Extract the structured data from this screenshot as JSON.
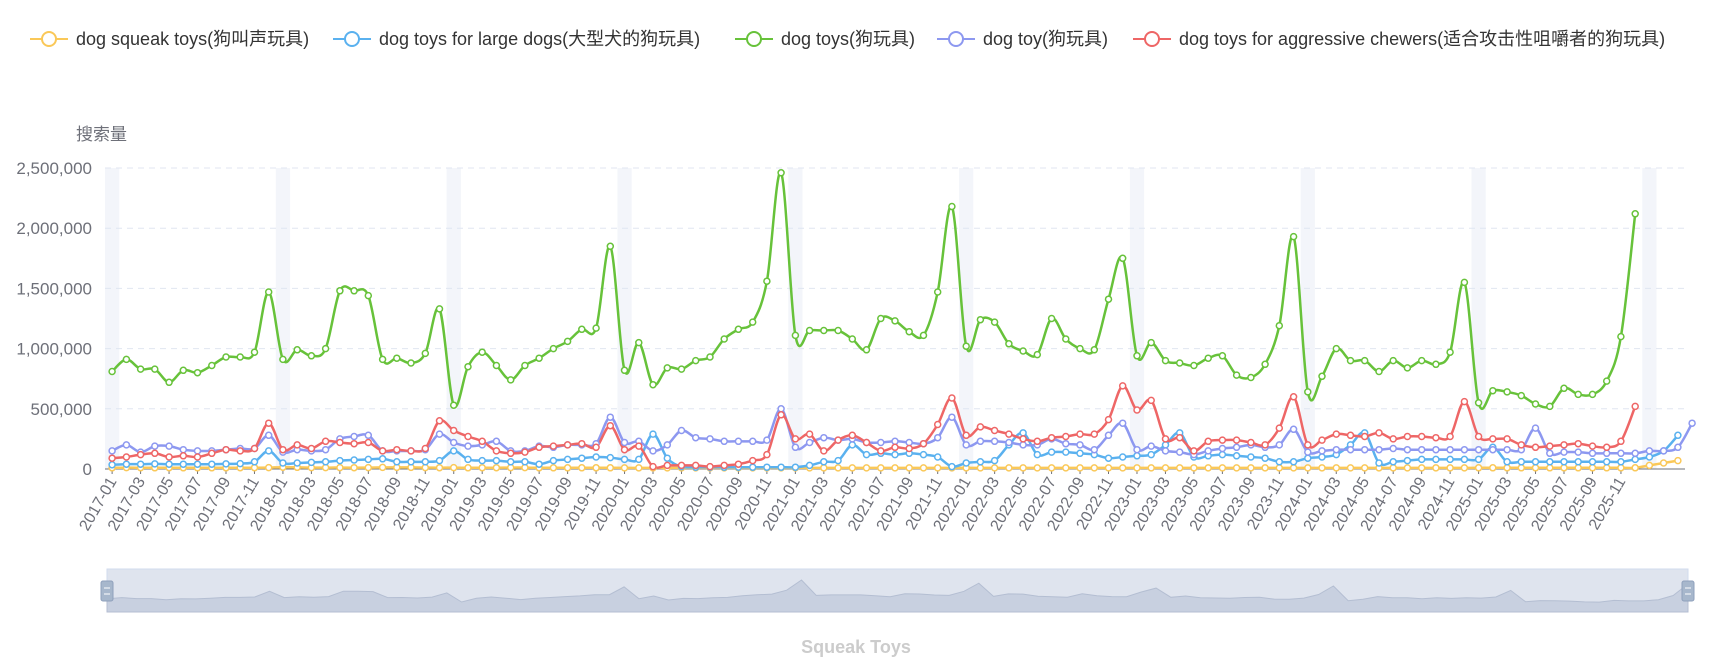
{
  "chart_data": {
    "type": "line",
    "title": "",
    "subtitle": "Squeak Toys",
    "ylabel": "搜索量",
    "xlabel": "",
    "ylim": [
      0,
      2500000
    ],
    "yticks": [
      "0",
      "500,000",
      "1,000,000",
      "1,500,000",
      "2,000,000",
      "2,500,000"
    ],
    "x_tick_labels": [
      "2017-01",
      "2017-03",
      "2017-05",
      "2017-07",
      "2017-09",
      "2017-11",
      "2018-01",
      "2018-03",
      "2018-05",
      "2018-07",
      "2018-09",
      "2018-11",
      "2019-01",
      "2019-03",
      "2019-05",
      "2019-07",
      "2019-09",
      "2019-11",
      "2020-01",
      "2020-03",
      "2020-05",
      "2020-07",
      "2020-09",
      "2020-11",
      "2021-01",
      "2021-03",
      "2021-05",
      "2021-07",
      "2021-09",
      "2021-11",
      "2022-01",
      "2022-03",
      "2022-05",
      "2022-07",
      "2022-09",
      "2022-11",
      "2023-01",
      "2023-03",
      "2023-05",
      "2023-07",
      "2023-09",
      "2023-11",
      "2024-01",
      "2024-03",
      "2024-05",
      "2024-07",
      "2024-09",
      "2024-11",
      "2025-01",
      "2025-03",
      "2025-05",
      "2025-07",
      "2025-09",
      "2025-11"
    ],
    "grid": true,
    "legend_position": "top",
    "datazoom": true,
    "series": [
      {
        "name": "dog squeak toys(狗叫声玩具)",
        "color": "#fac858",
        "values": [
          10000,
          12000,
          11000,
          10000,
          11000,
          10000,
          10000,
          10000,
          10000,
          11000,
          11000,
          12000,
          15000,
          14000,
          12000,
          12000,
          12000,
          11000,
          12000,
          13000,
          13000,
          13000,
          12000,
          11000,
          12000,
          10000,
          11000,
          11000,
          12000,
          12000,
          10000,
          10000,
          10000,
          10000,
          10000,
          10000,
          9000,
          9000,
          9000,
          9000,
          9000,
          9000,
          9000,
          9000,
          9000,
          9000,
          9000,
          9000,
          9000,
          9000,
          9000,
          9000,
          9000,
          9000,
          9000,
          9000,
          9000,
          9000,
          9000,
          9000,
          9000,
          9000,
          9000,
          9000,
          9000,
          9000,
          9000,
          9000,
          9000,
          9000,
          9000,
          9000,
          9000,
          9000,
          9000,
          9000,
          9000,
          9000,
          9000,
          9000,
          9000,
          9000,
          9000,
          9000,
          9000,
          9000,
          9000,
          9000,
          9000,
          9000,
          9000,
          9000,
          9000,
          9000,
          9000,
          9000,
          10000,
          10000,
          10000,
          10000,
          10000,
          10000,
          10000,
          10000,
          10000,
          10000,
          10000,
          10000,
          30000,
          50000,
          70000
        ]
      },
      {
        "name": "dog toys for large dogs(大型犬的狗玩具)",
        "color": "#5ab1ef",
        "values": [
          35000,
          40000,
          40000,
          42000,
          40000,
          40000,
          40000,
          40000,
          42000,
          45000,
          60000,
          150000,
          50000,
          50000,
          55000,
          60000,
          70000,
          75000,
          80000,
          85000,
          60000,
          60000,
          60000,
          70000,
          150000,
          80000,
          70000,
          70000,
          60000,
          60000,
          40000,
          70000,
          80000,
          90000,
          100000,
          95000,
          80000,
          80000,
          290000,
          90000,
          20000,
          15000,
          15000,
          15000,
          15000,
          15000,
          15000,
          15000,
          15000,
          30000,
          60000,
          70000,
          200000,
          120000,
          130000,
          120000,
          130000,
          120000,
          100000,
          20000,
          50000,
          60000,
          70000,
          200000,
          300000,
          120000,
          140000,
          140000,
          130000,
          120000,
          90000,
          100000,
          110000,
          120000,
          200000,
          300000,
          100000,
          110000,
          120000,
          110000,
          100000,
          90000,
          60000,
          60000,
          90000,
          100000,
          120000,
          200000,
          300000,
          50000,
          60000,
          70000,
          80000,
          80000,
          80000,
          80000,
          80000,
          180000,
          60000,
          60000,
          60000,
          60000,
          60000,
          60000,
          60000,
          60000,
          60000,
          80000,
          100000,
          150000,
          280000
        ]
      },
      {
        "name": "dog toys(狗玩具)",
        "color": "#67c23a",
        "values": [
          810000,
          910000,
          830000,
          830000,
          720000,
          820000,
          800000,
          860000,
          930000,
          930000,
          970000,
          1470000,
          910000,
          990000,
          940000,
          1000000,
          1480000,
          1480000,
          1440000,
          910000,
          920000,
          880000,
          960000,
          1330000,
          530000,
          850000,
          970000,
          860000,
          740000,
          860000,
          920000,
          1000000,
          1060000,
          1160000,
          1170000,
          1850000,
          820000,
          1050000,
          700000,
          840000,
          830000,
          900000,
          930000,
          1080000,
          1160000,
          1220000,
          1560000,
          2460000,
          1110000,
          1150000,
          1150000,
          1150000,
          1080000,
          990000,
          1250000,
          1230000,
          1140000,
          1110000,
          1470000,
          2180000,
          1020000,
          1240000,
          1220000,
          1040000,
          980000,
          950000,
          1250000,
          1080000,
          1000000,
          990000,
          1410000,
          1750000,
          940000,
          1050000,
          900000,
          880000,
          860000,
          920000,
          940000,
          780000,
          760000,
          870000,
          1190000,
          1930000,
          640000,
          770000,
          1000000,
          900000,
          900000,
          810000,
          900000,
          840000,
          900000,
          870000,
          970000,
          1550000,
          550000,
          650000,
          640000,
          610000,
          540000,
          520000,
          670000,
          620000,
          620000,
          730000,
          1100000,
          2120000
        ]
      },
      {
        "name": "dog toy(狗玩具)",
        "color": "#8d98f0",
        "values": [
          150000,
          200000,
          140000,
          190000,
          190000,
          160000,
          150000,
          150000,
          160000,
          170000,
          170000,
          280000,
          140000,
          160000,
          150000,
          160000,
          250000,
          270000,
          280000,
          150000,
          150000,
          150000,
          160000,
          290000,
          220000,
          190000,
          200000,
          230000,
          150000,
          150000,
          190000,
          180000,
          200000,
          200000,
          210000,
          430000,
          220000,
          230000,
          150000,
          200000,
          320000,
          260000,
          250000,
          230000,
          230000,
          230000,
          240000,
          500000,
          180000,
          220000,
          260000,
          240000,
          250000,
          220000,
          220000,
          230000,
          220000,
          210000,
          260000,
          430000,
          200000,
          230000,
          230000,
          220000,
          200000,
          200000,
          250000,
          210000,
          200000,
          160000,
          280000,
          380000,
          160000,
          190000,
          150000,
          140000,
          120000,
          150000,
          170000,
          180000,
          200000,
          180000,
          200000,
          330000,
          140000,
          150000,
          160000,
          160000,
          160000,
          160000,
          170000,
          160000,
          160000,
          160000,
          160000,
          160000,
          160000,
          160000,
          160000,
          160000,
          340000,
          130000,
          140000,
          140000,
          130000,
          130000,
          130000,
          130000,
          150000,
          150000,
          180000,
          380000
        ]
      },
      {
        "name": "dog toys for aggressive chewers(适合攻击性咀嚼者的狗玩具)",
        "color": "#ee6666",
        "values": [
          90000,
          100000,
          120000,
          130000,
          100000,
          110000,
          100000,
          130000,
          160000,
          150000,
          170000,
          380000,
          160000,
          200000,
          170000,
          230000,
          220000,
          210000,
          220000,
          150000,
          160000,
          150000,
          170000,
          400000,
          320000,
          270000,
          230000,
          150000,
          130000,
          140000,
          180000,
          190000,
          200000,
          210000,
          180000,
          360000,
          160000,
          190000,
          20000,
          30000,
          30000,
          30000,
          20000,
          30000,
          40000,
          70000,
          120000,
          450000,
          250000,
          290000,
          150000,
          240000,
          280000,
          220000,
          150000,
          180000,
          170000,
          210000,
          370000,
          590000,
          280000,
          350000,
          320000,
          290000,
          250000,
          230000,
          260000,
          270000,
          290000,
          290000,
          410000,
          690000,
          490000,
          570000,
          250000,
          260000,
          150000,
          230000,
          240000,
          240000,
          220000,
          200000,
          340000,
          600000,
          200000,
          240000,
          290000,
          280000,
          270000,
          300000,
          250000,
          270000,
          270000,
          260000,
          270000,
          560000,
          270000,
          250000,
          250000,
          200000,
          180000,
          190000,
          200000,
          210000,
          190000,
          180000,
          230000,
          520000
        ]
      }
    ]
  }
}
